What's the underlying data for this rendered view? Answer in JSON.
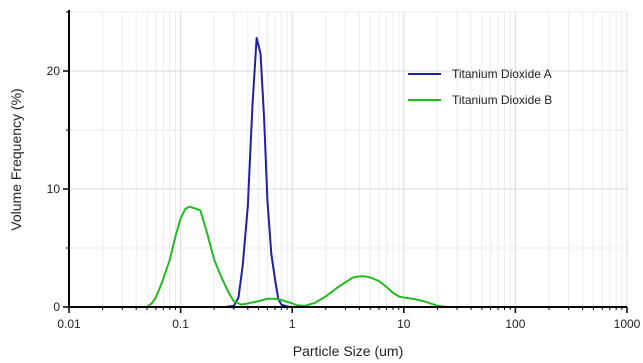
{
  "chart_data": {
    "type": "line",
    "title": "",
    "xlabel": "Particle Size (um)",
    "ylabel": "Volume Frequency (%)",
    "xscale": "log",
    "xlim": [
      0.01,
      1000
    ],
    "ylim": [
      0,
      25
    ],
    "grid": "major-and-minor",
    "legend_position": "top-right",
    "x_ticks": [
      0.01,
      0.1,
      1,
      10,
      100,
      1000
    ],
    "x_tick_labels": [
      "0.01",
      "0.1",
      "1",
      "10",
      "100",
      "1000"
    ],
    "y_ticks": [
      0,
      10,
      20
    ],
    "y_tick_labels": [
      "0",
      "10",
      "20"
    ],
    "series": [
      {
        "name": "Titanium Dioxide A",
        "color": "#1f1fa8",
        "x": [
          0.022,
          0.1,
          0.25,
          0.3,
          0.33,
          0.36,
          0.4,
          0.44,
          0.48,
          0.52,
          0.56,
          0.6,
          0.65,
          0.7,
          0.75,
          0.8,
          0.9,
          1.0,
          1.2,
          5,
          100,
          1000
        ],
        "y": [
          0,
          0,
          0,
          0.1,
          0.8,
          3.5,
          8.5,
          17.0,
          22.8,
          21.5,
          16.0,
          9.0,
          4.5,
          2.4,
          0.7,
          0.2,
          0.05,
          0,
          0,
          0,
          0,
          0
        ]
      },
      {
        "name": "Titanium Dioxide B",
        "color": "#22bb22",
        "x": [
          0.022,
          0.05,
          0.055,
          0.06,
          0.065,
          0.07,
          0.08,
          0.09,
          0.1,
          0.11,
          0.12,
          0.13,
          0.15,
          0.17,
          0.2,
          0.23,
          0.27,
          0.3,
          0.35,
          0.4,
          0.5,
          0.6,
          0.7,
          0.8,
          0.9,
          1.0,
          1.1,
          1.3,
          1.6,
          2.0,
          2.5,
          3.0,
          3.5,
          4.0,
          4.5,
          5.0,
          6.0,
          7.0,
          8.0,
          9.0,
          10.0,
          12.0,
          15.0,
          18.0,
          20.0,
          22.0,
          25.0,
          100,
          1000
        ],
        "y": [
          0,
          0,
          0.3,
          0.8,
          1.6,
          2.4,
          4.0,
          6.0,
          7.5,
          8.3,
          8.5,
          8.4,
          8.2,
          6.5,
          4.0,
          2.6,
          1.2,
          0.5,
          0.2,
          0.3,
          0.5,
          0.7,
          0.7,
          0.6,
          0.45,
          0.3,
          0.15,
          0.1,
          0.35,
          0.9,
          1.6,
          2.1,
          2.5,
          2.6,
          2.6,
          2.5,
          2.2,
          1.7,
          1.2,
          0.9,
          0.8,
          0.7,
          0.5,
          0.25,
          0.1,
          0.05,
          0,
          0,
          0
        ]
      }
    ]
  }
}
